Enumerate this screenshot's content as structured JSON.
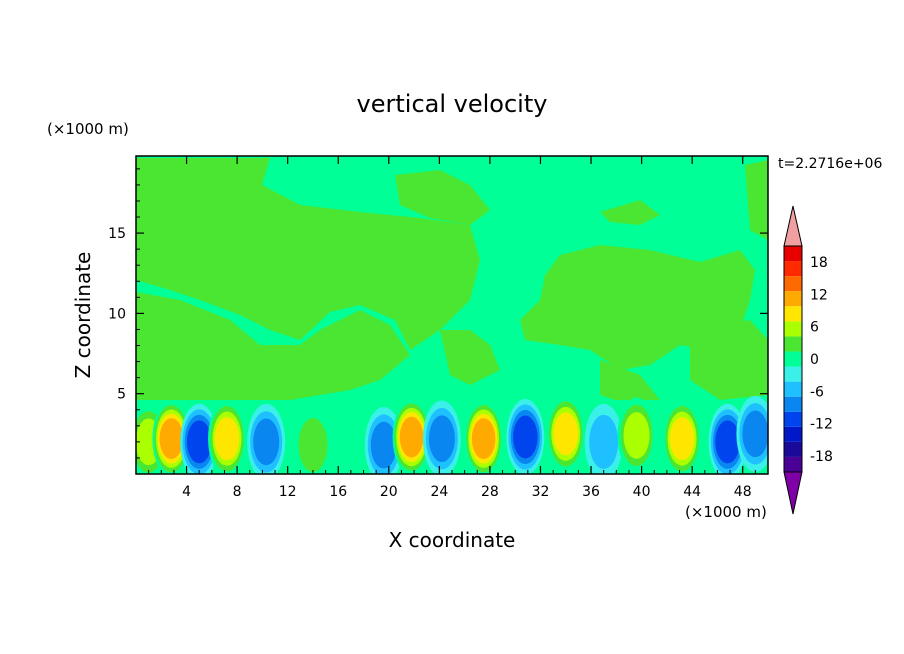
{
  "chart_data": {
    "type": "heatmap",
    "title": "vertical velocity",
    "time_label": "t=2.2716e+06",
    "xlabel": "X coordinate",
    "ylabel": "Z coordinate",
    "x_unit": "(×1000 m)",
    "y_unit": "(×1000 m)",
    "xlim": [
      0,
      50
    ],
    "ylim": [
      0,
      19.8
    ],
    "x_ticks": [
      4,
      8,
      12,
      16,
      20,
      24,
      28,
      32,
      36,
      40,
      44,
      48
    ],
    "y_ticks": [
      5,
      10,
      15
    ],
    "colorbar": {
      "levels": [
        -21,
        -18,
        -15,
        -12,
        -9,
        -6,
        -3,
        0,
        3,
        6,
        9,
        12,
        15,
        18,
        21
      ],
      "colors": [
        "#4b0096",
        "#1a0a9a",
        "#0018c8",
        "#0044ee",
        "#0a86f0",
        "#1ec0ff",
        "#3af0e8",
        "#00ff96",
        "#4be632",
        "#aaff00",
        "#ffe600",
        "#ffaa00",
        "#ff6a00",
        "#ff2a00",
        "#e80000"
      ],
      "under_color": "#8000a8",
      "over_color": "#f0a0a0",
      "tick_labels": [
        "18",
        "12",
        "6",
        "0",
        "-6",
        "-12",
        "-18"
      ],
      "tick_values": [
        18,
        12,
        6,
        0,
        -6,
        -12,
        -18
      ]
    },
    "cells": [
      {
        "x": 1.0,
        "z": 2.0,
        "value": 4
      },
      {
        "x": 2.8,
        "z": 2.2,
        "value": 10
      },
      {
        "x": 5.0,
        "z": 2.0,
        "value": -7
      },
      {
        "x": 7.2,
        "z": 2.2,
        "value": 9
      },
      {
        "x": 10.3,
        "z": 2.0,
        "value": -5
      },
      {
        "x": 14.0,
        "z": 1.8,
        "value": 3
      },
      {
        "x": 19.6,
        "z": 1.8,
        "value": -4
      },
      {
        "x": 21.8,
        "z": 2.3,
        "value": 11
      },
      {
        "x": 24.2,
        "z": 2.2,
        "value": -6
      },
      {
        "x": 27.5,
        "z": 2.2,
        "value": 10
      },
      {
        "x": 30.8,
        "z": 2.3,
        "value": -8
      },
      {
        "x": 34.0,
        "z": 2.5,
        "value": 7
      },
      {
        "x": 37.0,
        "z": 2.0,
        "value": -3
      },
      {
        "x": 39.6,
        "z": 2.4,
        "value": 6
      },
      {
        "x": 43.2,
        "z": 2.2,
        "value": 7
      },
      {
        "x": 46.8,
        "z": 2.0,
        "value": -8
      },
      {
        "x": 49.0,
        "z": 2.5,
        "value": -5
      }
    ]
  }
}
